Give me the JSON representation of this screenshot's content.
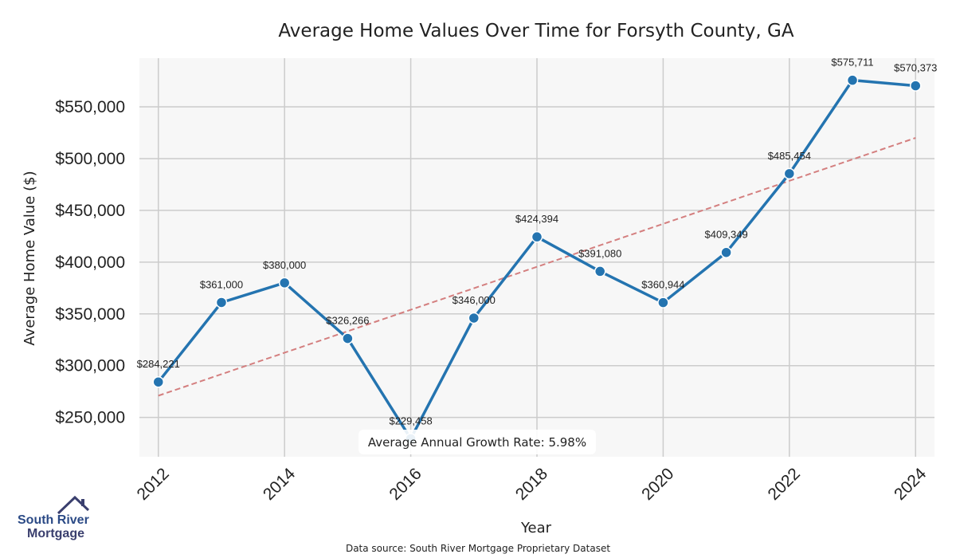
{
  "chart_data": {
    "type": "line",
    "title": "Average Home Values Over Time for Forsyth County, GA",
    "xlabel": "Year",
    "ylabel": "Average Home Value ($)",
    "x": [
      2012,
      2013,
      2014,
      2015,
      2016,
      2017,
      2018,
      2019,
      2020,
      2021,
      2022,
      2023,
      2024
    ],
    "series": [
      {
        "values": [
          284221,
          361000,
          380000,
          326266,
          229458,
          346000,
          424394,
          391080,
          360944,
          409349,
          485454,
          575711,
          570373
        ],
        "labels": [
          "$284,221",
          "$361,000",
          "$380,000",
          "$326,266",
          "$229,458",
          "$346,000",
          "$424,394",
          "$391,080",
          "$360,944",
          "$409,349",
          "$485,454",
          "$575,711",
          "$570,373"
        ],
        "color": "#2474b0"
      }
    ],
    "trendline": {
      "start": [
        2012,
        271000
      ],
      "end": [
        2024,
        520000
      ],
      "color": "#d47f7f",
      "style": "dashed"
    },
    "xticks": [
      "2012",
      "2014",
      "2016",
      "2018",
      "2020",
      "2022",
      "2024"
    ],
    "yticks": [
      250000,
      300000,
      350000,
      400000,
      450000,
      500000,
      550000
    ],
    "ytick_labels": [
      "$250,000",
      "$300,000",
      "$350,000",
      "$400,000",
      "$450,000",
      "$500,000",
      "$550,000"
    ],
    "xlim": [
      2011.7,
      2024.3
    ],
    "ylim": [
      212000,
      597000
    ],
    "grid": true,
    "annotation": "Average Annual Growth Rate: 5.98%"
  },
  "source": "Data source: South River Mortgage Proprietary Dataset",
  "logo": {
    "line1": "South River",
    "line2": "Mortgage",
    "color1": "#2b4a86",
    "color2": "#3a3f6e"
  },
  "colors": {
    "plot_bg": "#f7f7f7",
    "grid": "#cccccc",
    "line": "#2474b0",
    "trend": "#d47f7f"
  }
}
